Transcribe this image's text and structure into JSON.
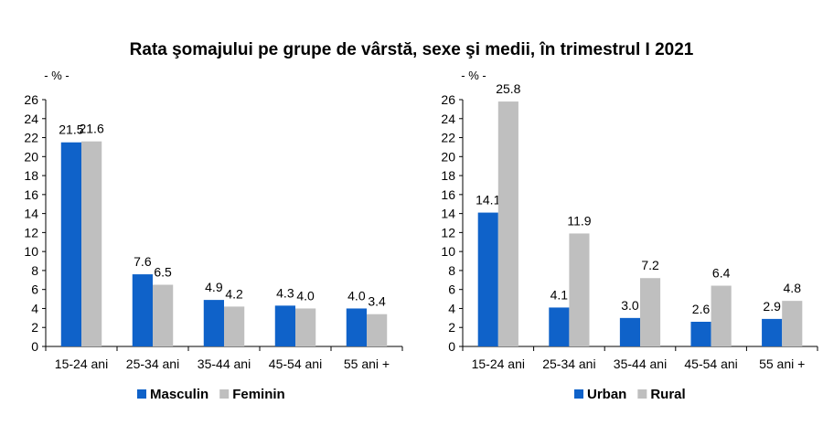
{
  "title": "Rata şomajului pe grupe de vârstă, sexe şi medii, în trimestrul I 2021",
  "colors": {
    "series1": "#0f62c9",
    "series2": "#bfbfbf",
    "axis": "#000000"
  },
  "chart_data": [
    {
      "type": "bar",
      "unit_label": "- % -",
      "categories": [
        "15-24 ani",
        "25-34 ani",
        "35-44 ani",
        "45-54 ani",
        "55 ani +"
      ],
      "ylim": [
        0,
        26
      ],
      "yticks": [
        0,
        2,
        4,
        6,
        8,
        10,
        12,
        14,
        16,
        18,
        20,
        22,
        24,
        26
      ],
      "grid": false,
      "legend_position": "bottom",
      "series": [
        {
          "name": "Masculin",
          "values": [
            21.5,
            7.6,
            4.9,
            4.3,
            4.0
          ],
          "labels": [
            "21.5",
            "7.6",
            "4.9",
            "4.3",
            "4.0"
          ]
        },
        {
          "name": "Feminin",
          "values": [
            21.6,
            6.5,
            4.2,
            4.0,
            3.4
          ],
          "labels": [
            "21.6",
            "6.5",
            "4.2",
            "4.0",
            "3.4"
          ]
        }
      ]
    },
    {
      "type": "bar",
      "unit_label": "- % -",
      "categories": [
        "15-24 ani",
        "25-34 ani",
        "35-44 ani",
        "45-54 ani",
        "55 ani +"
      ],
      "ylim": [
        0,
        26
      ],
      "yticks": [
        0,
        2,
        4,
        6,
        8,
        10,
        12,
        14,
        16,
        18,
        20,
        22,
        24,
        26
      ],
      "grid": false,
      "legend_position": "bottom",
      "series": [
        {
          "name": "Urban",
          "values": [
            14.1,
            4.1,
            3.0,
            2.6,
            2.9
          ],
          "labels": [
            "14.1",
            "4.1",
            "3.0",
            "2.6",
            "2.9"
          ]
        },
        {
          "name": "Rural",
          "values": [
            25.8,
            11.9,
            7.2,
            6.4,
            4.8
          ],
          "labels": [
            "25.8",
            "11.9",
            "7.2",
            "6.4",
            "4.8"
          ]
        }
      ]
    }
  ]
}
